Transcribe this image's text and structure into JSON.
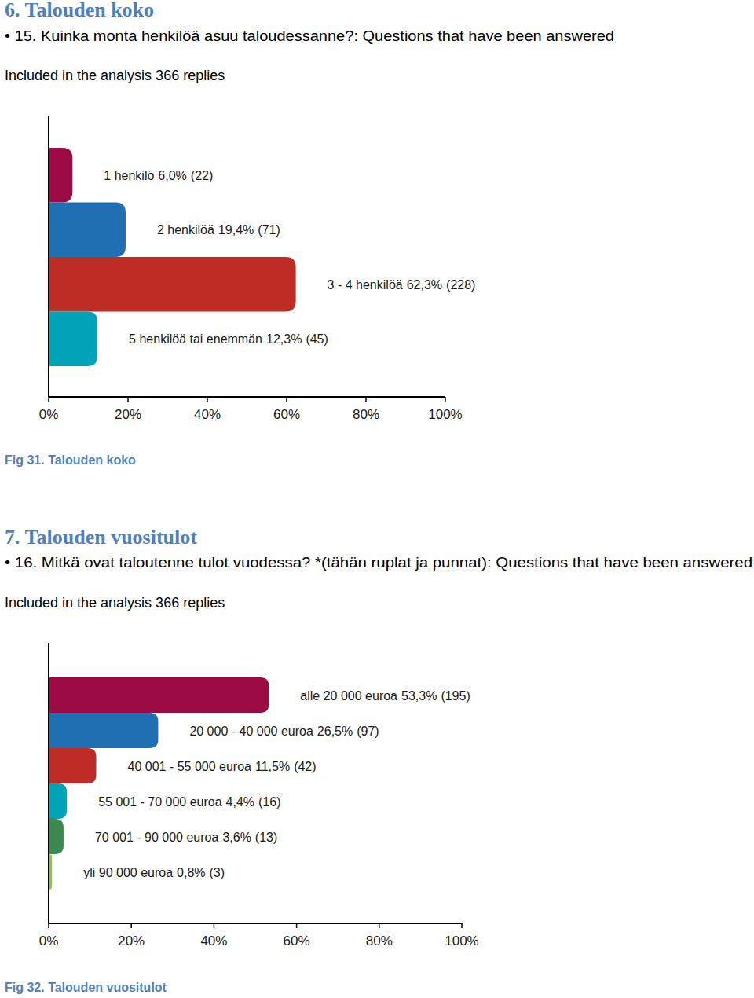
{
  "chart_data": [
    {
      "type": "bar",
      "orientation": "horizontal",
      "title": "6. Talouden koko",
      "subtitle": "• 15. Kuinka monta henkilöä asuu taloudessanne?: Questions that have been answered",
      "annotations": [
        "Included in the analysis 366 replies",
        "Fig 31. Talouden koko"
      ],
      "categories": [
        "1 henkilö",
        "2 henkilöä",
        "3 - 4 henkilöä",
        "5 henkilöä tai enemmän"
      ],
      "values": [
        6.0,
        19.4,
        62.3,
        12.3
      ],
      "value_labels": [
        "6,0%",
        "19,4%",
        "62,3%",
        "12,3%"
      ],
      "count_labels": [
        "(22)",
        "(71)",
        "(228)",
        "(45)"
      ],
      "colors": [
        "#9b0a42",
        "#1f6fb2",
        "#bd2d26",
        "#00a3b8"
      ],
      "xlim": [
        0,
        100
      ],
      "xticks": [
        {
          "value": 0,
          "label": "0%"
        },
        {
          "value": 20,
          "label": "20%"
        },
        {
          "value": 40,
          "label": "40%"
        },
        {
          "value": 60,
          "label": "60%"
        },
        {
          "value": 80,
          "label": "80%"
        },
        {
          "value": 100,
          "label": "100%"
        }
      ],
      "grid": false,
      "data_labels": true
    },
    {
      "type": "bar",
      "orientation": "horizontal",
      "title": "7. Talouden vuositulot",
      "subtitle": "• 16. Mitkä ovat taloutenne tulot vuodessa? *(tähän ruplat ja punnat): Questions that have been answered",
      "annotations": [
        "Included in the analysis 366 replies",
        "Fig 32. Talouden vuositulot"
      ],
      "categories": [
        "alle 20 000 euroa",
        "20 000 - 40 000 euroa",
        "40 001 - 55 000 euroa",
        "55 001 - 70 000 euroa",
        "70 001 - 90 000 euroa",
        "yli 90 000 euroa"
      ],
      "values": [
        53.3,
        26.5,
        11.5,
        4.4,
        3.6,
        0.8
      ],
      "value_labels": [
        "53,3%",
        "26,5%",
        "11,5%",
        "4,4%",
        "3,6%",
        "0,8%"
      ],
      "count_labels": [
        "(195)",
        "(97)",
        "(42)",
        "(16)",
        "(13)",
        "(3)"
      ],
      "colors": [
        "#9b0a42",
        "#1f6fb2",
        "#bd2d26",
        "#00a3b8",
        "#3d8a50",
        "#8cc63f"
      ],
      "xlim": [
        0,
        100
      ],
      "xticks": [
        {
          "value": 0,
          "label": "0%"
        },
        {
          "value": 20,
          "label": "20%"
        },
        {
          "value": 40,
          "label": "40%"
        },
        {
          "value": 60,
          "label": "60%"
        },
        {
          "value": 80,
          "label": "80%"
        },
        {
          "value": 100,
          "label": "100%"
        }
      ],
      "grid": false,
      "data_labels": true
    }
  ]
}
